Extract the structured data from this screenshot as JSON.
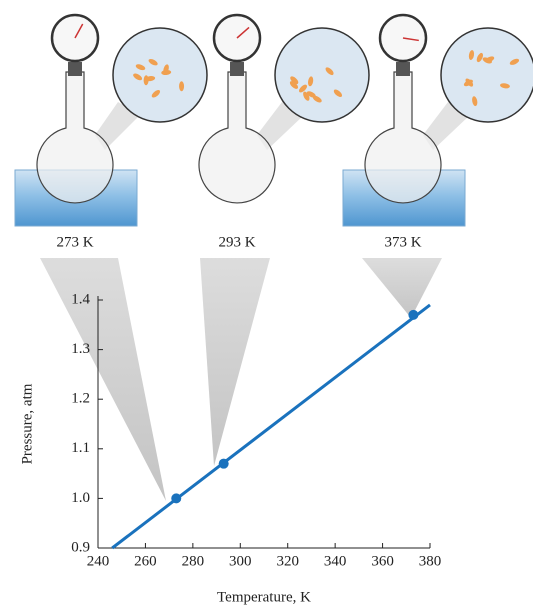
{
  "chart_data": {
    "type": "line",
    "x_label": "Temperature, K",
    "y_label": "Pressure, atm",
    "annotations": [
      "273 K",
      "293 K",
      "373 K"
    ],
    "xlim": [
      240,
      380
    ],
    "ylim": [
      0.9,
      1.4
    ],
    "xticks": [
      240,
      260,
      280,
      300,
      320,
      340,
      360,
      380
    ],
    "yticks": [
      0.9,
      {
        "value": 1.0,
        "label": "1.0"
      },
      1.1,
      1.2,
      1.3,
      1.4
    ],
    "series": [
      {
        "color": "#1a72bd",
        "x": [
          246,
          380
        ],
        "values": [
          0.9,
          1.39
        ]
      },
      {
        "color": "#1a72bd",
        "x": [
          273,
          293,
          373
        ],
        "values": [
          1.0,
          1.07,
          1.37
        ]
      }
    ]
  }
}
